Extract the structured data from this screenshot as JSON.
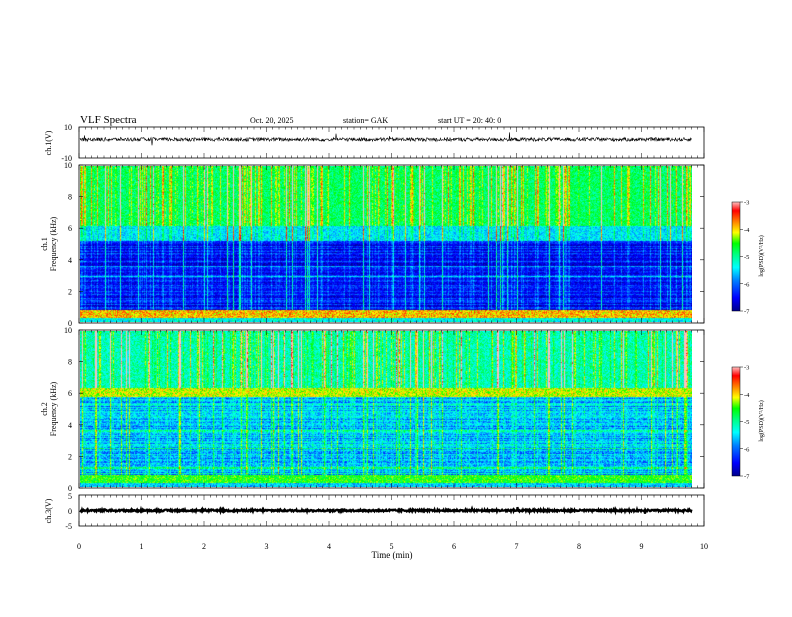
{
  "header": {
    "title": "VLF  Spectra",
    "date": "Oct. 20, 2025",
    "station": "station= GAK",
    "start": "start  UT  =    20: 40: 0"
  },
  "chart_data": [
    {
      "type": "line",
      "name": "ch1-waveform",
      "ylabel": "ch.1(V)",
      "ylim": [
        -10,
        10
      ],
      "yticks": [
        "10",
        "-10"
      ],
      "baseline": 2,
      "noise_amplitude": 1.2
    },
    {
      "type": "heatmap",
      "name": "ch1-spectrogram",
      "ylabel_line1": "ch.1",
      "ylabel_line2": "Frequency  (kHz)",
      "ylim": [
        0,
        10
      ],
      "yticks": [
        "0",
        "2",
        "4",
        "6",
        "8",
        "10"
      ],
      "colorbar": {
        "label": "log(PSD)(V²/Hz)",
        "ticks": [
          "-3",
          "-4",
          "-5",
          "-6",
          "-7"
        ],
        "range": [
          -7,
          -3
        ]
      }
    },
    {
      "type": "heatmap",
      "name": "ch2-spectrogram",
      "ylabel_line1": "ch.2",
      "ylabel_line2": "Frequency  (kHz)",
      "ylim": [
        0,
        10
      ],
      "yticks": [
        "0",
        "2",
        "4",
        "6",
        "8",
        "10"
      ],
      "colorbar": {
        "label": "log(PSD)(V²/Hz)",
        "ticks": [
          "-3",
          "-4",
          "-5",
          "-6",
          "-7"
        ],
        "range": [
          -7,
          -3
        ]
      }
    },
    {
      "type": "line",
      "name": "ch3-waveform",
      "ylabel": "ch.3(V)",
      "ylim": [
        -5,
        5
      ],
      "yticks": [
        "5",
        "0",
        "-5"
      ],
      "baseline": 0,
      "noise_amplitude": 0.3
    }
  ],
  "xaxis": {
    "label": "Time  (min)",
    "range": [
      0,
      10
    ],
    "ticks": [
      "0",
      "1",
      "2",
      "3",
      "4",
      "5",
      "6",
      "7",
      "8",
      "9",
      "10"
    ],
    "data_end": 9.8
  },
  "colormap": [
    "#00008b",
    "#0000ff",
    "#0080ff",
    "#00ffff",
    "#00ff80",
    "#00ff00",
    "#ffff00",
    "#ff8000",
    "#ff0000",
    "#ffc0c0"
  ]
}
